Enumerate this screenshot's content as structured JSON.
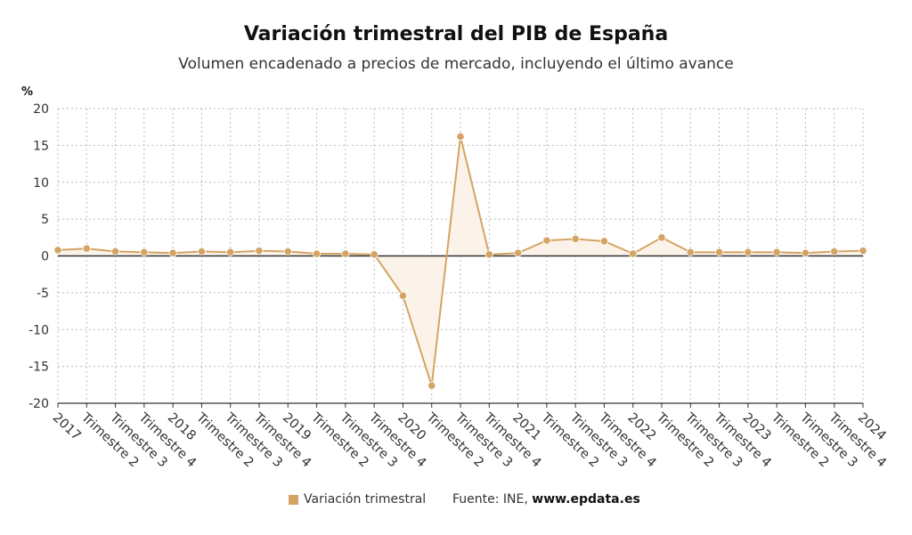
{
  "header": {
    "title": "Variación trimestral del PIB de España",
    "subtitle": "Volumen encadenado a precios de mercado, incluyendo el último avance",
    "unit": "%"
  },
  "footer": {
    "legend_label": "Variación trimestral",
    "source_label": "Fuente: INE,",
    "source_site": "www.epdata.es"
  },
  "colors": {
    "series": "#D4A464",
    "area": "#FBF3EA",
    "zero_line": "#333333",
    "grid": "#BBBBBB",
    "text": "#333333"
  },
  "chart_data": {
    "type": "line",
    "categories": [
      "2017",
      "Trimestre 2",
      "Trimestre 3",
      "Trimestre 4",
      "2018",
      "Trimestre 2",
      "Trimestre 3",
      "Trimestre 4",
      "2019",
      "Trimestre 2",
      "Trimestre 3",
      "Trimestre 4",
      "2020",
      "Trimestre 2",
      "Trimestre 3",
      "Trimestre 4",
      "2021",
      "Trimestre 2",
      "Trimestre 3",
      "Trimestre 4",
      "2022",
      "Trimestre 2",
      "Trimestre 3",
      "Trimestre 4",
      "2023",
      "Trimestre 2",
      "Trimestre 3",
      "Trimestre 4",
      "2024"
    ],
    "series": [
      {
        "name": "Variación trimestral",
        "values": [
          0.8,
          1.0,
          0.6,
          0.5,
          0.4,
          0.6,
          0.5,
          0.7,
          0.6,
          0.3,
          0.3,
          0.2,
          -5.4,
          -17.6,
          16.2,
          0.2,
          0.4,
          2.1,
          2.3,
          2.0,
          0.3,
          2.5,
          0.5,
          0.5,
          0.5,
          0.5,
          0.4,
          0.6,
          0.7
        ]
      }
    ],
    "ylim": [
      -20,
      20
    ],
    "yticks": [
      20,
      15,
      10,
      5,
      0,
      -5,
      -10,
      -15,
      -20
    ],
    "ylabel": "%",
    "grid": true,
    "legend": "bottom"
  }
}
